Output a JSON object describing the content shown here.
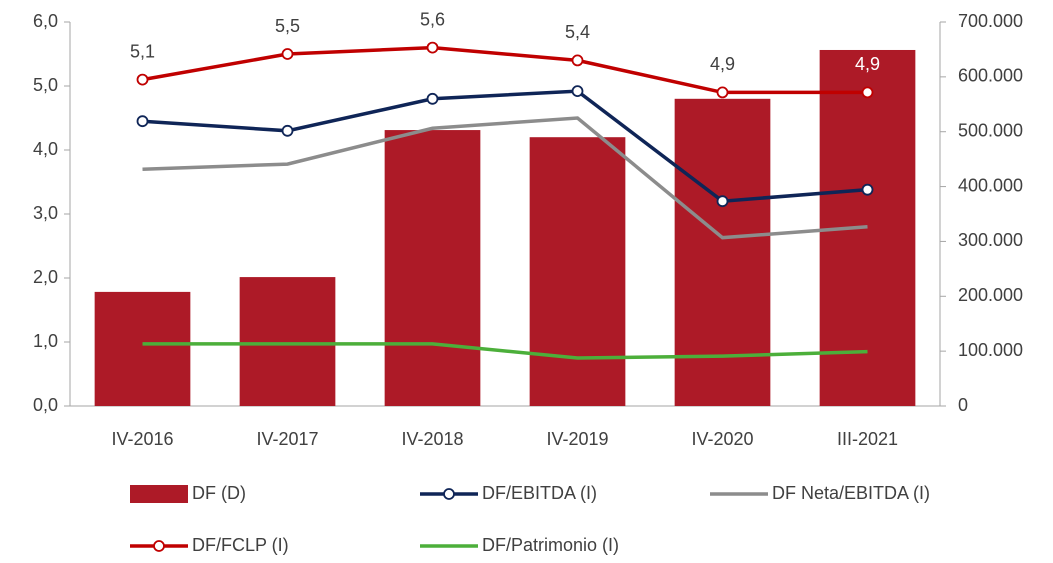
{
  "chart_data": {
    "type": "combo",
    "categories": [
      "IV-2016",
      "IV-2017",
      "IV-2018",
      "IV-2019",
      "IV-2020",
      "III-2021"
    ],
    "series": [
      {
        "name": "DF (D)",
        "type": "bar",
        "axis": "y2",
        "color": "#ad1a27",
        "values": [
          208000,
          235000,
          503000,
          490000,
          560000,
          649000
        ]
      },
      {
        "name": "DF/EBITDA (I)",
        "type": "line",
        "color": "#0f2557",
        "marker": true,
        "values": [
          4.45,
          4.3,
          4.8,
          4.92,
          3.2,
          3.38
        ]
      },
      {
        "name": "DF Neta/EBITDA (I)",
        "type": "line",
        "color": "#8c8c8c",
        "values": [
          3.7,
          3.78,
          4.34,
          4.5,
          2.63,
          2.8
        ]
      },
      {
        "name": "DF/FCLP (I)",
        "type": "line",
        "color": "#c00000",
        "marker": true,
        "values": [
          5.1,
          5.5,
          5.6,
          5.4,
          4.9,
          4.9
        ],
        "value_labels": [
          "5,1",
          "5,5",
          "5,6",
          "5,4",
          "4,9",
          "4,9"
        ]
      },
      {
        "name": "DF/Patrimonio (I)",
        "type": "line",
        "color": "#4caf3a",
        "values": [
          0.97,
          0.97,
          0.97,
          0.75,
          0.78,
          0.85
        ]
      }
    ],
    "ylim": [
      0,
      6
    ],
    "yticks": [
      {
        "value": 0,
        "label": "0,0"
      },
      {
        "value": 1,
        "label": "1,0"
      },
      {
        "value": 2,
        "label": "2,0"
      },
      {
        "value": 3,
        "label": "3,0"
      },
      {
        "value": 4,
        "label": "4,0"
      },
      {
        "value": 5,
        "label": "5,0"
      },
      {
        "value": 6,
        "label": "6,0"
      }
    ],
    "y2lim": [
      0,
      700000
    ],
    "y2ticks": [
      0,
      {
        "value": 100000,
        "label": "100.000"
      },
      {
        "value": 200000,
        "label": "200.000"
      },
      {
        "value": 300000,
        "label": "300.000"
      },
      {
        "value": 400000,
        "label": "400.000"
      },
      {
        "value": 500000,
        "label": "500.000"
      },
      {
        "value": 600000,
        "label": "600.000"
      },
      {
        "value": 700000,
        "label": "700.000"
      }
    ],
    "grid": false
  }
}
